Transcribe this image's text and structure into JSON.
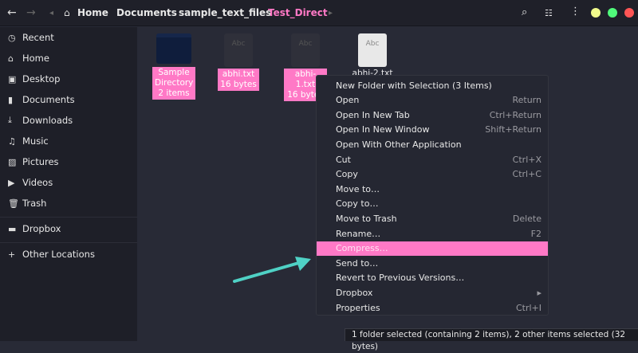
{
  "header": {
    "back_icon": "arrow-left",
    "forward_icon": "arrow-right",
    "breadcrumbs": [
      "Home",
      "Documents",
      "sample_text_files",
      "Test_Direct"
    ],
    "search_icon": "search",
    "view_icon": "list-view",
    "menu_icon": "kebab",
    "window_dots": [
      "#f1fa8c",
      "#50fa7b",
      "#ff5555"
    ]
  },
  "sidebar": {
    "items": [
      {
        "icon": "clock",
        "label": "Recent"
      },
      {
        "icon": "home",
        "label": "Home"
      },
      {
        "icon": "desktop",
        "label": "Desktop"
      },
      {
        "icon": "document",
        "label": "Documents"
      },
      {
        "icon": "download",
        "label": "Downloads"
      },
      {
        "icon": "music",
        "label": "Music"
      },
      {
        "icon": "picture",
        "label": "Pictures"
      },
      {
        "icon": "video",
        "label": "Videos"
      },
      {
        "icon": "trash",
        "label": "Trash"
      },
      {
        "icon": "folder",
        "label": "Dropbox"
      },
      {
        "icon": "plus",
        "label": "Other Locations"
      }
    ]
  },
  "files": [
    {
      "name": "Sample Directory",
      "name_l1": "Sample",
      "name_l2": "Directory",
      "info": "2 items",
      "type": "folder",
      "selected": true
    },
    {
      "name": "abhi.txt",
      "info": "16 bytes",
      "type": "text",
      "selected": true
    },
    {
      "name": "abhi-1.txt",
      "info": "16 bytes",
      "type": "text",
      "selected": true
    },
    {
      "name": "abhi-2.txt",
      "type": "text",
      "selected": false
    }
  ],
  "file_icon_text": "Abc",
  "context_menu": {
    "items": [
      {
        "label": "New Folder with Selection (3 Items)",
        "shortcut": ""
      },
      {
        "label": "Open",
        "shortcut": "Return"
      },
      {
        "label": "Open In New Tab",
        "shortcut": "Ctrl+Return"
      },
      {
        "label": "Open In New Window",
        "shortcut": "Shift+Return"
      },
      {
        "label": "Open With Other Application",
        "shortcut": ""
      },
      {
        "label": "Cut",
        "shortcut": "Ctrl+X"
      },
      {
        "label": "Copy",
        "shortcut": "Ctrl+C"
      },
      {
        "label": "Move to…",
        "shortcut": ""
      },
      {
        "label": "Copy to…",
        "shortcut": ""
      },
      {
        "label": "Move to Trash",
        "shortcut": "Delete"
      },
      {
        "label": "Rename…",
        "shortcut": "F2"
      },
      {
        "label": "Compress…",
        "shortcut": "",
        "highlighted": true
      },
      {
        "label": "Send to…",
        "shortcut": ""
      },
      {
        "label": "Revert to Previous Versions…",
        "shortcut": ""
      },
      {
        "label": "Dropbox",
        "shortcut": "▸"
      },
      {
        "label": "Properties",
        "shortcut": "Ctrl+I"
      }
    ]
  },
  "status": "1 folder selected (containing 2 items), 2 other items selected (32 bytes)",
  "colors": {
    "accent": "#ff79c6",
    "arrow": "#4fd1c5"
  }
}
